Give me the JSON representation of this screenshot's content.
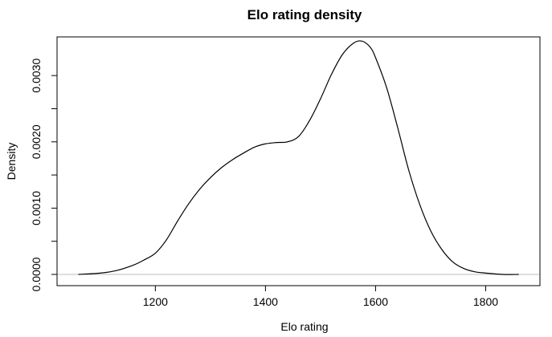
{
  "chart_data": {
    "type": "line",
    "title": "Elo rating density",
    "xlabel": "Elo rating",
    "ylabel": "Density",
    "xlim": [
      1055,
      1865
    ],
    "ylim": [
      0,
      0.00345
    ],
    "x_ticks": [
      1200,
      1400,
      1600,
      1800
    ],
    "x_tick_labels": [
      "1200",
      "1400",
      "1600",
      "1800"
    ],
    "y_ticks": [
      0,
      0.0005,
      0.001,
      0.0015,
      0.002,
      0.0025,
      0.003
    ],
    "y_tick_labels": [
      "0.0000",
      "",
      "0.0010",
      "",
      "0.0020",
      "",
      "0.0030"
    ],
    "grid": false,
    "baseline": 0,
    "series": [
      {
        "color": "#000000",
        "x": [
          1060,
          1100,
          1130,
          1160,
          1180,
          1200,
          1220,
          1240,
          1260,
          1280,
          1300,
          1320,
          1340,
          1360,
          1380,
          1400,
          1420,
          1440,
          1460,
          1480,
          1500,
          1520,
          1540,
          1560,
          1575,
          1590,
          1600,
          1620,
          1640,
          1660,
          1680,
          1700,
          1720,
          1740,
          1760,
          1780,
          1800,
          1830,
          1860
        ],
        "y": [
          0.0,
          2e-05,
          6e-05,
          0.00014,
          0.00022,
          0.00032,
          0.00052,
          0.0008,
          0.00106,
          0.00128,
          0.00146,
          0.00161,
          0.00173,
          0.00183,
          0.00192,
          0.00197,
          0.00199,
          0.002,
          0.00208,
          0.00232,
          0.00265,
          0.00302,
          0.00332,
          0.00349,
          0.00352,
          0.00343,
          0.00327,
          0.00282,
          0.00222,
          0.00158,
          0.00106,
          0.00066,
          0.00038,
          0.00019,
          9e-05,
          4e-05,
          2e-05,
          0.0,
          0.0
        ]
      }
    ]
  }
}
